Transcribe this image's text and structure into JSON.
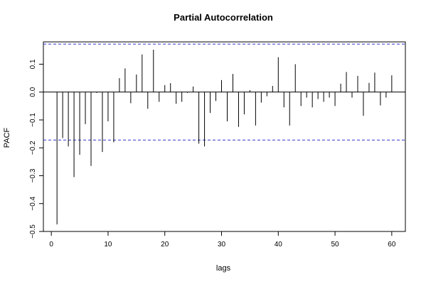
{
  "chart_data": {
    "type": "bar",
    "title": "Partial Autocorrelation",
    "xlabel": "lags",
    "ylabel": "PACF",
    "xlim": [
      -1.4,
      62.4
    ],
    "ylim": [
      -0.5,
      0.18
    ],
    "x_ticks": [
      0,
      10,
      20,
      30,
      40,
      50,
      60
    ],
    "y_ticks": [
      -0.5,
      -0.4,
      -0.3,
      -0.2,
      -0.1,
      0.0,
      0.1
    ],
    "y_tick_labels": [
      "−0.5",
      "−0.4",
      "−0.3",
      "−0.2",
      "−0.1",
      "0.0",
      "0.1"
    ],
    "confidence_bound": 0.172,
    "bound_color": "#3333cc",
    "bar_color": "#000000",
    "lags": [
      1,
      2,
      3,
      4,
      5,
      6,
      7,
      8,
      9,
      10,
      11,
      12,
      13,
      14,
      15,
      16,
      17,
      18,
      19,
      20,
      21,
      22,
      23,
      24,
      25,
      26,
      27,
      28,
      29,
      30,
      31,
      32,
      33,
      34,
      35,
      36,
      37,
      38,
      39,
      40,
      41,
      42,
      43,
      44,
      45,
      46,
      47,
      48,
      49,
      50,
      51,
      52,
      53,
      54,
      55,
      56,
      57,
      58,
      59,
      60
    ],
    "values": [
      -0.475,
      -0.165,
      -0.195,
      -0.305,
      -0.225,
      -0.115,
      -0.265,
      -0.003,
      -0.215,
      -0.105,
      -0.18,
      0.05,
      0.085,
      -0.04,
      0.063,
      0.135,
      -0.06,
      0.152,
      -0.035,
      0.025,
      0.032,
      -0.042,
      -0.035,
      -0.003,
      0.02,
      -0.185,
      -0.195,
      -0.075,
      -0.032,
      0.043,
      -0.105,
      0.065,
      -0.125,
      -0.08,
      0.007,
      -0.12,
      -0.038,
      -0.015,
      0.022,
      0.125,
      -0.055,
      -0.12,
      0.1,
      -0.05,
      -0.02,
      -0.055,
      -0.025,
      -0.035,
      -0.02,
      -0.05,
      0.03,
      0.072,
      -0.02,
      0.058,
      -0.085,
      0.033,
      0.07,
      -0.048,
      -0.02,
      0.06
    ]
  }
}
